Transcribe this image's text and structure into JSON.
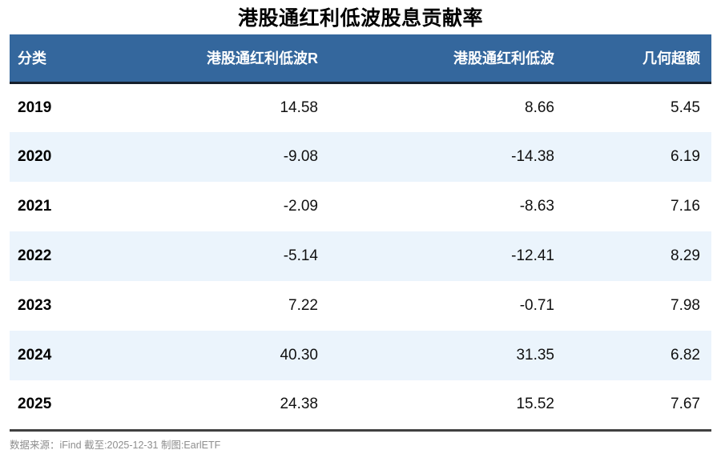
{
  "title": "港股通红利低波股息贡献率",
  "table": {
    "columns": [
      "分类",
      "港股通红利低波R",
      "港股通红利低波",
      "几何超额"
    ],
    "rows": [
      {
        "year": "2019",
        "values": [
          "14.58",
          "8.66",
          "5.45"
        ]
      },
      {
        "year": "2020",
        "values": [
          "-9.08",
          "-14.38",
          "6.19"
        ]
      },
      {
        "year": "2021",
        "values": [
          "-2.09",
          "-8.63",
          "7.16"
        ]
      },
      {
        "year": "2022",
        "values": [
          "-5.14",
          "-12.41",
          "8.29"
        ]
      },
      {
        "year": "2023",
        "values": [
          "7.22",
          "-0.71",
          "7.98"
        ]
      },
      {
        "year": "2024",
        "values": [
          "40.30",
          "31.35",
          "6.82"
        ]
      },
      {
        "year": "2025",
        "values": [
          "24.38",
          "15.52",
          "7.67"
        ]
      }
    ]
  },
  "footer": "数据来源：iFind 截至:2025-12-31 制图:EarlETF",
  "colors": {
    "header_bg": "#34679D",
    "header_text": "#FFFFFF",
    "stripe_bg": "#EBF4FC",
    "header_bottom_border": "#16202C",
    "table_bottom_border": "#404040",
    "footer_text": "#8E8E8E"
  },
  "chart_data": {
    "type": "table",
    "title": "港股通红利低波股息贡献率",
    "categories": [
      "2019",
      "2020",
      "2021",
      "2022",
      "2023",
      "2024",
      "2025"
    ],
    "series": [
      {
        "name": "港股通红利低波R",
        "values": [
          14.58,
          -9.08,
          -2.09,
          -5.14,
          7.22,
          40.3,
          24.38
        ]
      },
      {
        "name": "港股通红利低波",
        "values": [
          8.66,
          -14.38,
          -8.63,
          -12.41,
          -0.71,
          31.35,
          15.52
        ]
      },
      {
        "name": "几何超额",
        "values": [
          5.45,
          6.19,
          7.16,
          8.29,
          7.98,
          6.82,
          7.67
        ]
      }
    ],
    "layout_hints": {
      "striped_rows": true,
      "header_style": "blue-bar-white-text",
      "value_alignment": "right"
    }
  }
}
